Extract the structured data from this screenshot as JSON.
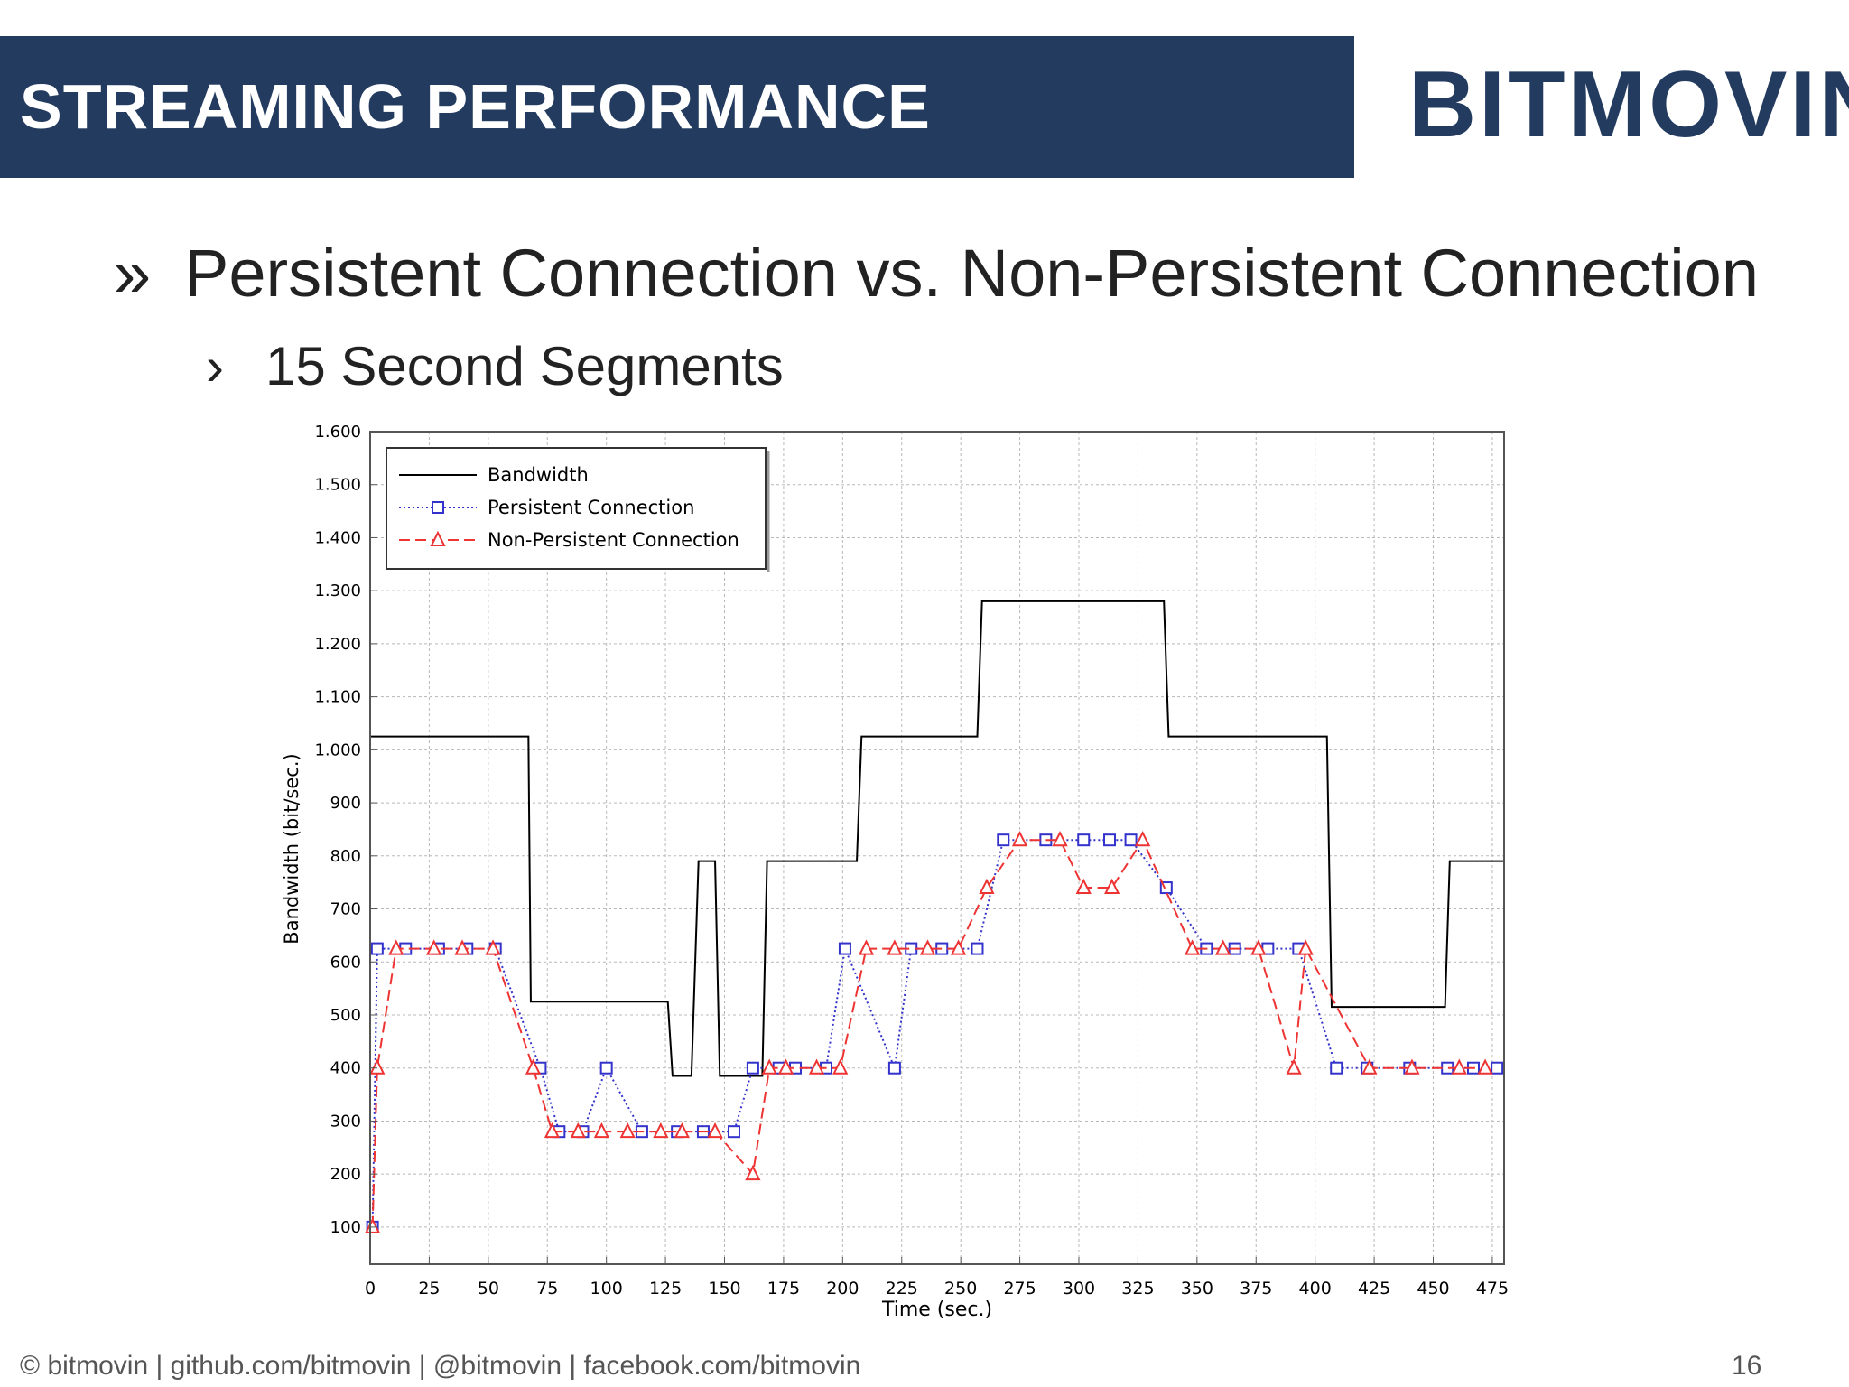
{
  "header": {
    "title": "STREAMING PERFORMANCE",
    "logo": "BITMOVIN"
  },
  "bullets": {
    "level1": {
      "marker": "»",
      "text": "Persistent Connection vs. Non-Persistent Connection"
    },
    "level2": {
      "marker": "›",
      "text": "15 Second Segments"
    }
  },
  "footer": {
    "left": "© bitmovin | github.com/bitmovin | @bitmovin | facebook.com/bitmovin",
    "page": "16"
  },
  "chart_data": {
    "type": "line",
    "xlabel": "Time (sec.)",
    "ylabel": "Bandwidth (bit/sec.)",
    "xlim": [
      0,
      480
    ],
    "ylim": [
      30,
      1600
    ],
    "x_ticks": [
      0,
      25,
      50,
      75,
      100,
      125,
      150,
      175,
      200,
      225,
      250,
      275,
      300,
      325,
      350,
      375,
      400,
      425,
      450,
      475
    ],
    "x_tick_labels": [
      "0",
      "25",
      "50",
      "75",
      "100",
      "125",
      "150",
      "175",
      "200",
      "225",
      "250",
      "275",
      "300",
      "325",
      "350",
      "375",
      "400",
      "425",
      "450",
      "475"
    ],
    "y_ticks": [
      100,
      200,
      300,
      400,
      500,
      600,
      700,
      800,
      900,
      1000,
      1100,
      1200,
      1300,
      1400,
      1500,
      1600
    ],
    "y_tick_labels": [
      "100",
      "200",
      "300",
      "400",
      "500",
      "600",
      "700",
      "800",
      "900",
      "1.000",
      "1.100",
      "1.200",
      "1.300",
      "1.400",
      "1.500",
      "1.600"
    ],
    "grid": true,
    "legend_position": "top-left",
    "series": [
      {
        "name": "Bandwidth",
        "style": "solid",
        "marker": "none",
        "color": "#000000",
        "points": [
          [
            0,
            1025
          ],
          [
            67,
            1025
          ],
          [
            68,
            525
          ],
          [
            126,
            525
          ],
          [
            128,
            385
          ],
          [
            136,
            385
          ],
          [
            139,
            790
          ],
          [
            146,
            790
          ],
          [
            148,
            385
          ],
          [
            166,
            385
          ],
          [
            168,
            790
          ],
          [
            206,
            790
          ],
          [
            208,
            1025
          ],
          [
            257,
            1025
          ],
          [
            259,
            1280
          ],
          [
            336,
            1280
          ],
          [
            338,
            1025
          ],
          [
            405,
            1025
          ],
          [
            407,
            515
          ],
          [
            455,
            515
          ],
          [
            457,
            790
          ],
          [
            480,
            790
          ]
        ]
      },
      {
        "name": "Persistent Connection",
        "style": "dotted",
        "marker": "square",
        "color": "#3333cc",
        "points": [
          [
            1,
            100
          ],
          [
            3,
            625
          ],
          [
            15,
            625
          ],
          [
            29,
            625
          ],
          [
            41,
            625
          ],
          [
            53,
            625
          ],
          [
            72,
            400
          ],
          [
            80,
            280
          ],
          [
            90,
            280
          ],
          [
            100,
            400
          ],
          [
            115,
            280
          ],
          [
            130,
            280
          ],
          [
            141,
            280
          ],
          [
            154,
            280
          ],
          [
            162,
            400
          ],
          [
            173,
            400
          ],
          [
            180,
            400
          ],
          [
            193,
            400
          ],
          [
            201,
            625
          ],
          [
            222,
            400
          ],
          [
            229,
            625
          ],
          [
            242,
            625
          ],
          [
            257,
            625
          ],
          [
            268,
            830
          ],
          [
            286,
            830
          ],
          [
            302,
            830
          ],
          [
            313,
            830
          ],
          [
            322,
            830
          ],
          [
            337,
            740
          ],
          [
            354,
            625
          ],
          [
            366,
            625
          ],
          [
            380,
            625
          ],
          [
            393,
            625
          ],
          [
            409,
            400
          ],
          [
            422,
            400
          ],
          [
            440,
            400
          ],
          [
            456,
            400
          ],
          [
            467,
            400
          ],
          [
            477,
            400
          ]
        ]
      },
      {
        "name": "Non-Persistent Connection",
        "style": "dashed",
        "marker": "triangle",
        "color": "#ee3333",
        "points": [
          [
            1,
            100
          ],
          [
            3,
            400
          ],
          [
            11,
            625
          ],
          [
            27,
            625
          ],
          [
            39,
            625
          ],
          [
            52,
            625
          ],
          [
            69,
            400
          ],
          [
            77,
            280
          ],
          [
            88,
            280
          ],
          [
            98,
            280
          ],
          [
            109,
            280
          ],
          [
            123,
            280
          ],
          [
            132,
            280
          ],
          [
            146,
            280
          ],
          [
            162,
            200
          ],
          [
            169,
            400
          ],
          [
            176,
            400
          ],
          [
            189,
            400
          ],
          [
            199,
            400
          ],
          [
            210,
            625
          ],
          [
            222,
            625
          ],
          [
            236,
            625
          ],
          [
            249,
            625
          ],
          [
            261,
            740
          ],
          [
            275,
            830
          ],
          [
            292,
            830
          ],
          [
            302,
            740
          ],
          [
            314,
            740
          ],
          [
            327,
            830
          ],
          [
            348,
            625
          ],
          [
            361,
            625
          ],
          [
            376,
            625
          ],
          [
            391,
            400
          ],
          [
            396,
            625
          ],
          [
            423,
            400
          ],
          [
            441,
            400
          ],
          [
            461,
            400
          ],
          [
            472,
            400
          ]
        ]
      }
    ]
  }
}
